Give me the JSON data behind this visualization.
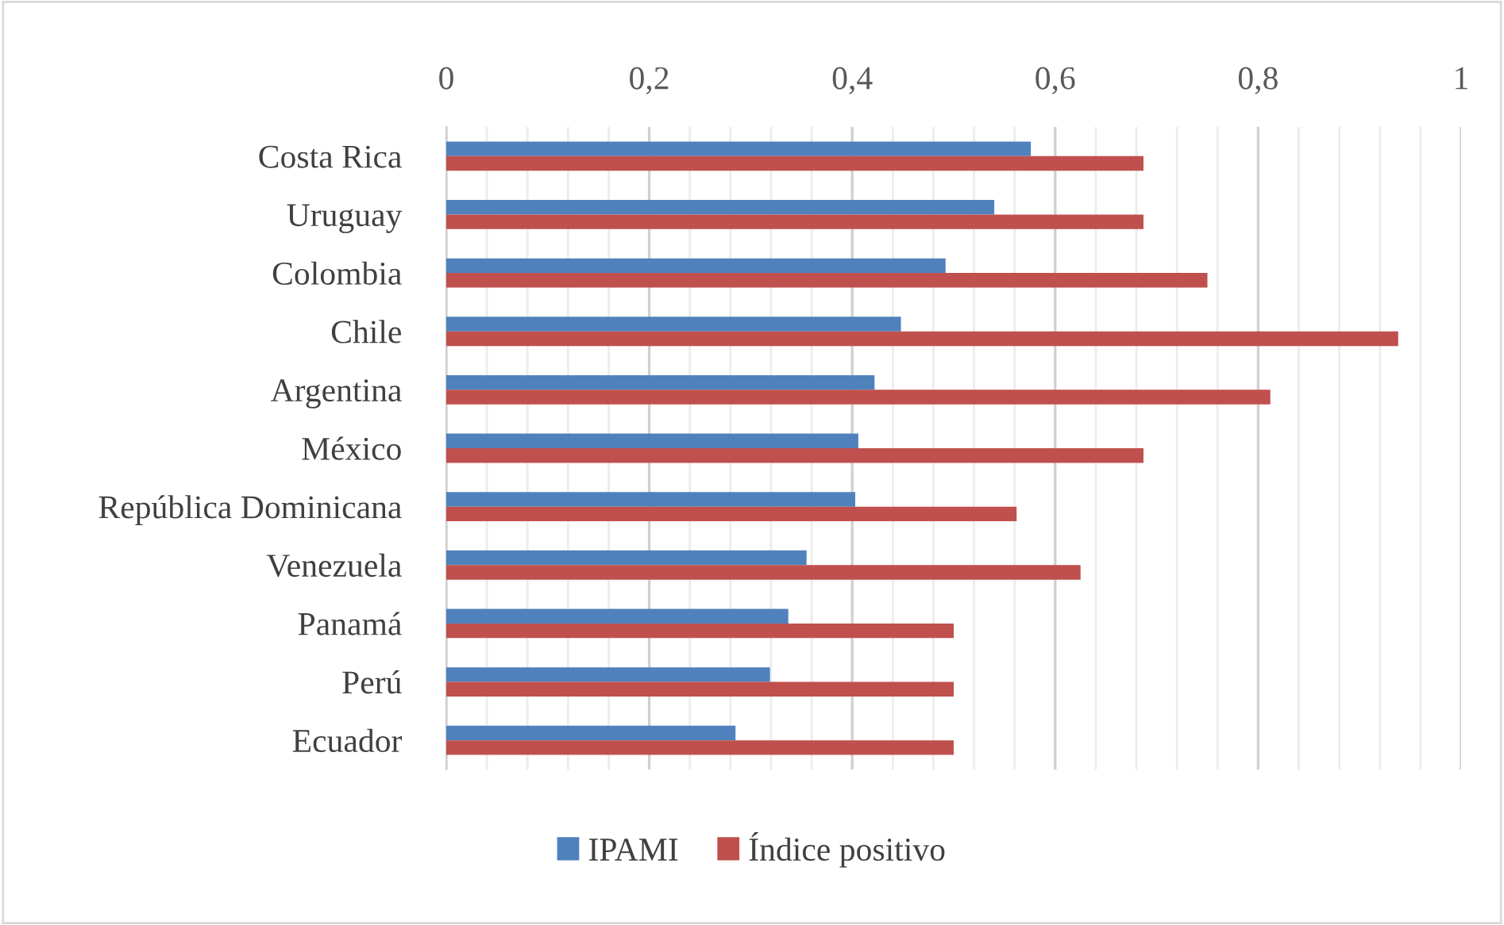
{
  "chart_data": {
    "type": "bar",
    "orientation": "horizontal",
    "categories": [
      "Costa Rica",
      "Uruguay",
      "Colombia",
      "Chile",
      "Argentina",
      "México",
      "República Dominicana",
      "Venezuela",
      "Panamá",
      "Perú",
      "Ecuador"
    ],
    "series": [
      {
        "name": "IPAMI",
        "color": "#4f81bd",
        "values": [
          0.576,
          0.54,
          0.492,
          0.448,
          0.422,
          0.406,
          0.403,
          0.355,
          0.337,
          0.319,
          0.285
        ]
      },
      {
        "name": "Índice positivo",
        "color": "#c0504d",
        "values": [
          0.687,
          0.687,
          0.75,
          0.938,
          0.812,
          0.687,
          0.562,
          0.625,
          0.5,
          0.5,
          0.5
        ]
      }
    ],
    "xlim": [
      0,
      1
    ],
    "xticks": [
      0,
      {
        "value": 0.2,
        "label": "0,2"
      },
      {
        "value": 0.4,
        "label": "0,4"
      },
      {
        "value": 0.6,
        "label": "0,6"
      },
      {
        "value": 0.8,
        "label": "0,8"
      },
      1
    ],
    "grid": "x",
    "legend": "bottom"
  }
}
